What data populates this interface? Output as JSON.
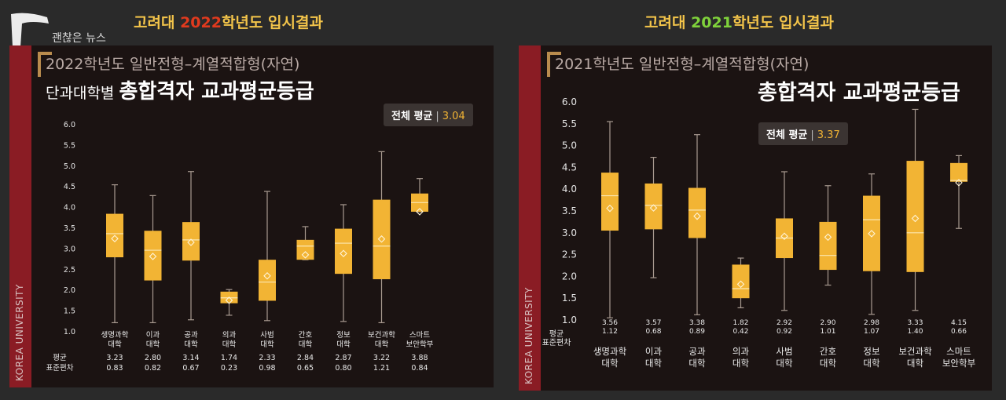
{
  "headings": [
    {
      "pre": "고려대 ",
      "year": "2022",
      "post": "학년도 입시결과"
    },
    {
      "pre": "고려대 ",
      "year": "2021",
      "post": "학년도 입시결과"
    }
  ],
  "watermark": "괜찮은 뉴스",
  "sidebar_label": "KOREA UNIVERSITY",
  "colors": {
    "box": "#f2b434",
    "median": "#fbe6b0",
    "whisker": "#a89a90",
    "sidebar": "#8a1c24"
  },
  "panels": [
    {
      "subtitle": "2022학년도 일반전형–계열적합형(자연)",
      "title_prefix": "단과대학별 ",
      "title": "총합격자 교과평균등급",
      "overall_label": "전체 평균",
      "overall_sep": "|",
      "overall_value": "3.04",
      "row_labels": [
        "평균",
        "표준편차"
      ]
    },
    {
      "subtitle": "2021학년도 일반전형–계열적합형(자연)",
      "title_prefix": "",
      "title": "총합격자 교과평균등급",
      "overall_label": "전체 평균",
      "overall_sep": "|",
      "overall_value": "3.37",
      "row_labels": [
        "평균",
        "표준편차"
      ]
    }
  ],
  "chart_data": [
    {
      "type": "box",
      "title": "총합격자 교과평균등급",
      "ylim": [
        1.0,
        6.0
      ],
      "yticks": [
        "1.0",
        "1.5",
        "2.0",
        "2.5",
        "3.0",
        "3.5",
        "4.0",
        "4.5",
        "5.0",
        "5.5",
        "6.0"
      ],
      "categories": [
        [
          "생명과학",
          "대학"
        ],
        [
          "이과",
          "대학"
        ],
        [
          "공과",
          "대학"
        ],
        [
          "의과",
          "대학"
        ],
        [
          "사범",
          "대학"
        ],
        [
          "간호",
          "대학"
        ],
        [
          "정보",
          "대학"
        ],
        [
          "보건과학",
          "대학"
        ],
        [
          "스마트",
          "보안학부"
        ]
      ],
      "mean_labels": [
        "3.23",
        "2.80",
        "3.14",
        "1.74",
        "2.33",
        "2.84",
        "2.87",
        "3.22",
        "3.88"
      ],
      "sd_labels": [
        "0.83",
        "0.82",
        "0.67",
        "0.23",
        "0.98",
        "0.65",
        "0.80",
        "1.21",
        "0.84"
      ],
      "boxes": [
        {
          "min": 1.2,
          "q1": 2.78,
          "median": 3.35,
          "q3": 3.83,
          "max": 4.53,
          "mean": 3.23
        },
        {
          "min": 1.2,
          "q1": 2.22,
          "median": 2.95,
          "q3": 3.42,
          "max": 4.27,
          "mean": 2.8
        },
        {
          "min": 1.27,
          "q1": 2.7,
          "median": 3.2,
          "q3": 3.63,
          "max": 4.85,
          "mean": 3.14
        },
        {
          "min": 1.38,
          "q1": 1.67,
          "median": 1.8,
          "q3": 1.95,
          "max": 2.0,
          "mean": 1.74
        },
        {
          "min": 1.25,
          "q1": 1.73,
          "median": 2.18,
          "q3": 2.72,
          "max": 4.37,
          "mean": 2.33
        },
        {
          "min": 2.72,
          "q1": 2.72,
          "median": 3.05,
          "q3": 3.2,
          "max": 3.52,
          "mean": 2.84
        },
        {
          "min": 1.23,
          "q1": 2.38,
          "median": 3.12,
          "q3": 3.47,
          "max": 4.05,
          "mean": 2.87
        },
        {
          "min": 1.2,
          "q1": 2.25,
          "median": 3.05,
          "q3": 4.17,
          "max": 5.33,
          "mean": 3.22
        },
        {
          "min": 3.88,
          "q1": 3.88,
          "median": 4.1,
          "q3": 4.32,
          "max": 4.68,
          "mean": 3.88
        }
      ]
    },
    {
      "type": "box",
      "title": "총합격자 교과평균등급",
      "ylim": [
        1.0,
        6.0
      ],
      "yticks": [
        "1.0",
        "1.5",
        "2.0",
        "2.5",
        "3.0",
        "3.5",
        "4.0",
        "4.5",
        "5.0",
        "5.5",
        "6.0"
      ],
      "categories": [
        [
          "생명과학",
          "대학"
        ],
        [
          "이과",
          "대학"
        ],
        [
          "공과",
          "대학"
        ],
        [
          "의과",
          "대학"
        ],
        [
          "사범",
          "대학"
        ],
        [
          "간호",
          "대학"
        ],
        [
          "정보",
          "대학"
        ],
        [
          "보건과학",
          "대학"
        ],
        [
          "스마트",
          "보안학부"
        ]
      ],
      "mean_labels": [
        "3.56",
        "3.57",
        "3.38",
        "1.82",
        "2.92",
        "2.90",
        "2.98",
        "3.33",
        "4.15"
      ],
      "sd_labels": [
        "1.12",
        "0.68",
        "0.89",
        "0.42",
        "0.92",
        "1.01",
        "1.07",
        "1.40",
        "0.66"
      ],
      "boxes": [
        {
          "min": 1.05,
          "q1": 3.05,
          "median": 3.85,
          "q3": 4.38,
          "max": 5.55,
          "mean": 3.56
        },
        {
          "min": 1.97,
          "q1": 3.08,
          "median": 3.63,
          "q3": 4.13,
          "max": 4.73,
          "mean": 3.57
        },
        {
          "min": 1.12,
          "q1": 2.88,
          "median": 3.52,
          "q3": 4.03,
          "max": 5.25,
          "mean": 3.38
        },
        {
          "min": 1.28,
          "q1": 1.5,
          "median": 1.72,
          "q3": 2.27,
          "max": 2.42,
          "mean": 1.82
        },
        {
          "min": 1.22,
          "q1": 2.42,
          "median": 2.88,
          "q3": 3.33,
          "max": 4.4,
          "mean": 2.92
        },
        {
          "min": 1.8,
          "q1": 2.15,
          "median": 2.48,
          "q3": 3.25,
          "max": 4.08,
          "mean": 2.9
        },
        {
          "min": 1.13,
          "q1": 2.12,
          "median": 3.3,
          "q3": 3.85,
          "max": 4.35,
          "mean": 2.98
        },
        {
          "min": 1.22,
          "q1": 2.1,
          "median": 3.0,
          "q3": 4.65,
          "max": 5.83,
          "mean": 3.33
        },
        {
          "min": 3.1,
          "q1": 4.17,
          "median": 4.2,
          "q3": 4.6,
          "max": 4.77,
          "mean": 4.15
        }
      ]
    }
  ]
}
